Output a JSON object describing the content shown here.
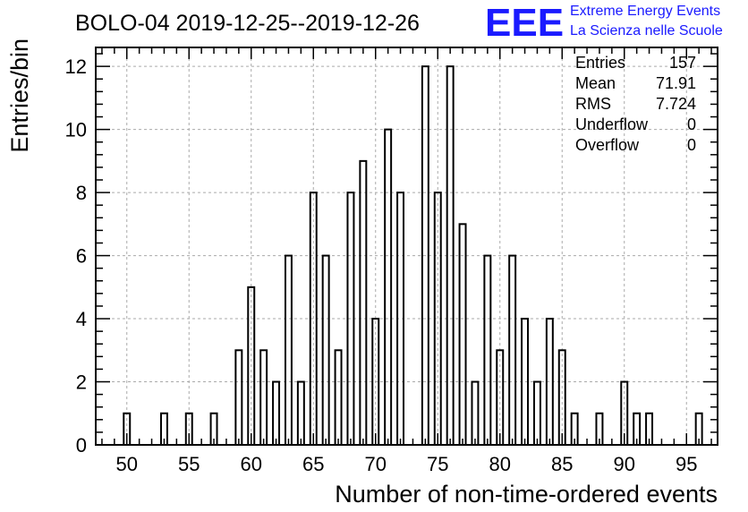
{
  "chart_data": {
    "type": "bar",
    "title": "BOLO-04 2019-12-25--2019-12-26",
    "xlabel": "Number of non-time-ordered events",
    "ylabel": "Entries/bin",
    "xlim": [
      47.5,
      97.5
    ],
    "ylim": [
      0,
      12.6
    ],
    "x_ticks": [
      50,
      55,
      60,
      65,
      70,
      75,
      80,
      85,
      90,
      95
    ],
    "y_ticks": [
      0,
      2,
      4,
      6,
      8,
      10,
      12
    ],
    "grid": true,
    "bins": [
      {
        "x": 50,
        "count": 1
      },
      {
        "x": 53,
        "count": 1
      },
      {
        "x": 55,
        "count": 1
      },
      {
        "x": 57,
        "count": 1
      },
      {
        "x": 59,
        "count": 3
      },
      {
        "x": 60,
        "count": 5
      },
      {
        "x": 61,
        "count": 3
      },
      {
        "x": 62,
        "count": 2
      },
      {
        "x": 63,
        "count": 6
      },
      {
        "x": 64,
        "count": 2
      },
      {
        "x": 65,
        "count": 8
      },
      {
        "x": 66,
        "count": 6
      },
      {
        "x": 67,
        "count": 3
      },
      {
        "x": 68,
        "count": 8
      },
      {
        "x": 69,
        "count": 9
      },
      {
        "x": 70,
        "count": 4
      },
      {
        "x": 71,
        "count": 10
      },
      {
        "x": 72,
        "count": 8
      },
      {
        "x": 73,
        "count": 0
      },
      {
        "x": 74,
        "count": 12
      },
      {
        "x": 75,
        "count": 8
      },
      {
        "x": 76,
        "count": 12
      },
      {
        "x": 77,
        "count": 7
      },
      {
        "x": 78,
        "count": 2
      },
      {
        "x": 79,
        "count": 6
      },
      {
        "x": 80,
        "count": 3
      },
      {
        "x": 81,
        "count": 6
      },
      {
        "x": 82,
        "count": 4
      },
      {
        "x": 83,
        "count": 2
      },
      {
        "x": 84,
        "count": 4
      },
      {
        "x": 85,
        "count": 3
      },
      {
        "x": 86,
        "count": 1
      },
      {
        "x": 88,
        "count": 1
      },
      {
        "x": 90,
        "count": 2
      },
      {
        "x": 91,
        "count": 1
      },
      {
        "x": 92,
        "count": 1
      },
      {
        "x": 96,
        "count": 1
      }
    ],
    "stats": [
      {
        "label": "Entries",
        "value": "157"
      },
      {
        "label": "Mean",
        "value": "71.91"
      },
      {
        "label": "RMS",
        "value": "7.724"
      },
      {
        "label": "Underflow",
        "value": "0"
      },
      {
        "label": "Overflow",
        "value": "0"
      }
    ]
  },
  "logo": {
    "mark": "EEE",
    "line1": "Extreme Energy Events",
    "line2": "La Scienza nelle Scuole",
    "color": "#1a1aff"
  }
}
